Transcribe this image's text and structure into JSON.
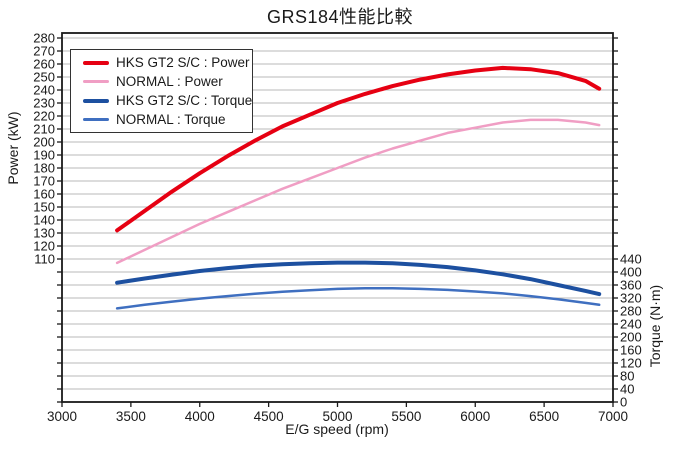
{
  "chart_data": {
    "type": "line",
    "title": "GRS184性能比較",
    "xlabel": "E/G speed (rpm)",
    "ylabel_left": "Power (kW)",
    "ylabel_right": "Torque (N·m)",
    "grid": "horizontal",
    "legend_position": "upper-left",
    "x_axis": {
      "min": 3000,
      "max": 7000,
      "tick_step": 500,
      "ticks": [
        3000,
        3500,
        4000,
        4500,
        5000,
        5500,
        6000,
        6500,
        7000
      ]
    },
    "power_axis": {
      "unit": "kW",
      "tick_step": 10,
      "labeled_min": 110,
      "labeled_max": 280,
      "labeled_ticks": [
        280,
        270,
        260,
        250,
        240,
        230,
        220,
        210,
        200,
        190,
        180,
        170,
        160,
        150,
        140,
        130,
        120,
        110
      ]
    },
    "torque_axis": {
      "unit": "N·m",
      "tick_step": 40,
      "labeled_min": 0,
      "labeled_max": 440,
      "labeled_ticks": [
        440,
        400,
        360,
        320,
        280,
        240,
        200,
        160,
        120,
        80,
        40,
        0
      ]
    },
    "x": [
      3400,
      3600,
      3800,
      4000,
      4200,
      4400,
      4600,
      4800,
      5000,
      5200,
      5400,
      5600,
      5800,
      6000,
      6200,
      6400,
      6600,
      6800,
      6900
    ],
    "series": [
      {
        "name": "HKS GT2 S/C : Power",
        "axis": "power",
        "color": "#e60012",
        "line_width": 4,
        "values": [
          132,
          147,
          162,
          176,
          189,
          201,
          212,
          221,
          230,
          237,
          243,
          248,
          252,
          255,
          257,
          256,
          253,
          247,
          241
        ]
      },
      {
        "name": "NORMAL : Power",
        "axis": "power",
        "color": "#f09ec4",
        "line_width": 2.5,
        "values": [
          107,
          117,
          127,
          137,
          146,
          155,
          164,
          172,
          180,
          188,
          195,
          201,
          207,
          211,
          215,
          217,
          217,
          215,
          213
        ]
      },
      {
        "name": "HKS GT2 S/C : Torque",
        "axis": "torque",
        "color": "#1d50a0",
        "line_width": 4,
        "values": [
          367,
          380,
          392,
          403,
          412,
          419,
          424,
          427,
          429,
          429,
          427,
          422,
          415,
          405,
          393,
          378,
          360,
          342,
          332
        ]
      },
      {
        "name": "NORMAL : Torque",
        "axis": "torque",
        "color": "#3f6fc0",
        "line_width": 2.5,
        "values": [
          288,
          299,
          309,
          318,
          326,
          333,
          339,
          344,
          348,
          350,
          350,
          348,
          345,
          340,
          334,
          326,
          316,
          305,
          299
        ]
      }
    ],
    "colors": {
      "grid": "#b9b9b9",
      "axis": "#1a1a1a",
      "background": "#ffffff",
      "text": "#1a1a1a"
    }
  }
}
